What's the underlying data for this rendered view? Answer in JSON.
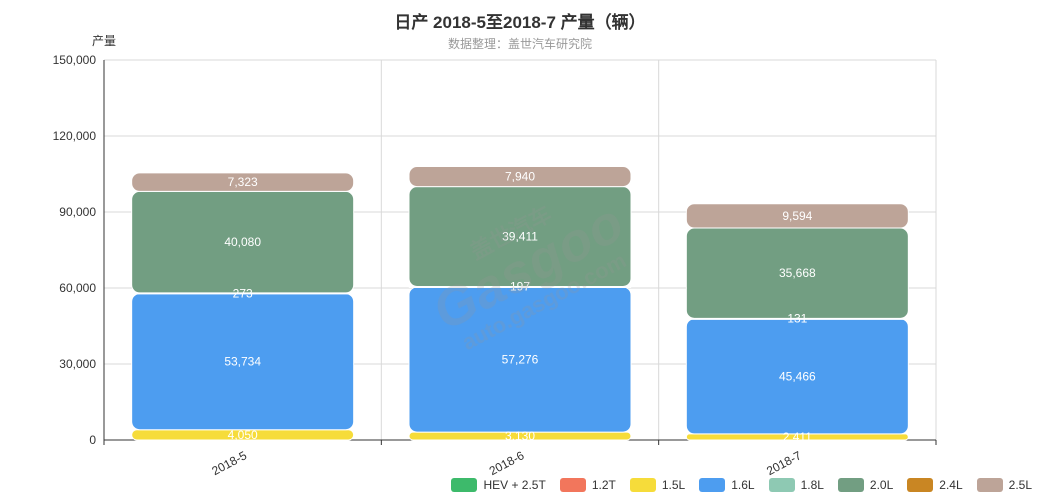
{
  "title": "日产 2018-5至2018-7 产量（辆）",
  "subtitle": "数据整理：盖世汽车研究院",
  "watermark": {
    "cn": "盖世汽车",
    "logo": "Gasgoo",
    "url": "auto.gasgoo.com"
  },
  "chart_data": {
    "type": "bar",
    "stacked": true,
    "title": "日产 2018-5至2018-7 产量（辆）",
    "subtitle": "数据整理：盖世汽车研究院",
    "ylabel": "产量",
    "ylim": [
      0,
      150000
    ],
    "yticks": [
      0,
      30000,
      60000,
      90000,
      120000,
      150000
    ],
    "ytick_labels": [
      "0",
      "30,000",
      "60,000",
      "90,000",
      "120,000",
      "150,000"
    ],
    "categories": [
      "2018-5",
      "2018-6",
      "2018-7"
    ],
    "grid": true,
    "legend_position": "bottom-right",
    "series": [
      {
        "name": "HEV + 2.5T",
        "color": "#3dba6b",
        "values": [
          0,
          0,
          0
        ]
      },
      {
        "name": "1.2T",
        "color": "#f2765c",
        "values": [
          0,
          0,
          0
        ]
      },
      {
        "name": "1.5L",
        "color": "#f6dc3a",
        "values": [
          4050,
          3130,
          2411
        ]
      },
      {
        "name": "1.6L",
        "color": "#4d9df0",
        "values": [
          53734,
          57276,
          45466
        ]
      },
      {
        "name": "1.8L",
        "color": "#8ec9b3",
        "values": [
          273,
          197,
          131
        ]
      },
      {
        "name": "2.0L",
        "color": "#729e82",
        "values": [
          40080,
          39411,
          35668
        ]
      },
      {
        "name": "2.4L",
        "color": "#c98623",
        "values": [
          0,
          0,
          0
        ]
      },
      {
        "name": "2.5L",
        "color": "#bda498",
        "values": [
          7323,
          7940,
          9594
        ]
      }
    ]
  }
}
